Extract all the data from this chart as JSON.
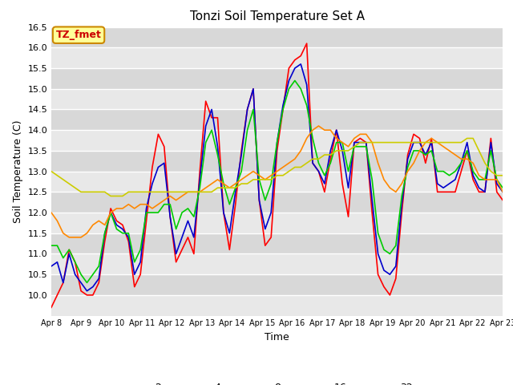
{
  "title": "Tonzi Soil Temperature Set A",
  "xlabel": "Time",
  "ylabel": "Soil Temperature (C)",
  "ylim": [
    9.5,
    16.5
  ],
  "yticks": [
    10.0,
    10.5,
    11.0,
    11.5,
    12.0,
    12.5,
    13.0,
    13.5,
    14.0,
    14.5,
    15.0,
    15.5,
    16.0,
    16.5
  ],
  "xtick_labels": [
    "Apr 8",
    "Apr 9",
    "Apr 10",
    "Apr 11",
    "Apr 12",
    "Apr 13",
    "Apr 14",
    "Apr 15",
    "Apr 16",
    "Apr 17",
    "Apr 18",
    "Apr 19",
    "Apr 20",
    "Apr 21",
    "Apr 22",
    "Apr 23"
  ],
  "fig_bg_color": "#ffffff",
  "plot_bg_color": "#e8e8e8",
  "grid_color": "#ffffff",
  "line_colors": {
    "2cm": "#ff0000",
    "4cm": "#0000cc",
    "8cm": "#00cc00",
    "16cm": "#ff8800",
    "32cm": "#cccc00"
  },
  "legend_label": "TZ_fmet",
  "legend_bg": "#ffff99",
  "legend_border": "#cc8800",
  "legend_text_color": "#cc0000",
  "series_2cm": [
    9.7,
    10.0,
    10.3,
    11.1,
    10.8,
    10.1,
    10.0,
    10.0,
    10.3,
    11.3,
    12.1,
    11.8,
    11.7,
    11.3,
    10.2,
    10.5,
    11.8,
    13.1,
    13.9,
    13.6,
    11.9,
    10.8,
    11.1,
    11.4,
    11.0,
    13.0,
    14.7,
    14.3,
    14.3,
    12.0,
    11.1,
    12.2,
    13.5,
    14.5,
    15.0,
    12.3,
    11.2,
    11.4,
    13.5,
    14.5,
    15.5,
    15.7,
    15.8,
    16.1,
    13.2,
    13.0,
    12.5,
    13.3,
    14.0,
    12.7,
    11.9,
    13.7,
    13.8,
    13.7,
    12.0,
    10.5,
    10.2,
    10.0,
    10.4,
    12.0,
    13.4,
    13.9,
    13.8,
    13.2,
    13.8,
    12.5,
    12.5,
    12.5,
    12.5,
    13.0,
    13.5,
    12.8,
    12.5,
    12.5,
    13.8,
    12.5,
    12.3
  ],
  "series_4cm": [
    10.7,
    10.8,
    10.3,
    11.0,
    10.5,
    10.3,
    10.1,
    10.2,
    10.4,
    11.5,
    12.0,
    11.7,
    11.6,
    11.4,
    10.5,
    10.8,
    12.1,
    12.7,
    13.1,
    13.2,
    11.9,
    11.0,
    11.4,
    11.8,
    11.4,
    12.8,
    14.1,
    14.5,
    13.6,
    12.0,
    11.5,
    12.5,
    13.4,
    14.5,
    15.0,
    12.3,
    11.6,
    12.0,
    13.7,
    14.6,
    15.2,
    15.5,
    15.6,
    15.1,
    13.2,
    13.0,
    12.7,
    13.5,
    14.0,
    13.5,
    12.6,
    13.7,
    13.7,
    13.7,
    12.3,
    11.0,
    10.6,
    10.5,
    10.7,
    12.2,
    13.3,
    13.7,
    13.7,
    13.4,
    13.7,
    12.7,
    12.6,
    12.7,
    12.8,
    13.2,
    13.7,
    12.9,
    12.6,
    12.5,
    13.7,
    12.7,
    12.5
  ],
  "series_8cm": [
    11.2,
    11.2,
    10.9,
    11.1,
    10.8,
    10.5,
    10.3,
    10.5,
    10.7,
    11.5,
    12.0,
    11.6,
    11.5,
    11.5,
    10.8,
    11.1,
    12.0,
    12.0,
    12.0,
    12.2,
    12.2,
    11.6,
    12.0,
    12.1,
    11.9,
    12.6,
    13.7,
    14.0,
    13.4,
    12.7,
    12.2,
    12.6,
    13.0,
    14.0,
    14.5,
    12.8,
    12.3,
    12.7,
    13.7,
    14.5,
    15.0,
    15.2,
    15.0,
    14.6,
    13.8,
    13.2,
    12.9,
    13.2,
    13.7,
    13.7,
    13.0,
    13.6,
    13.6,
    13.6,
    12.8,
    11.5,
    11.1,
    11.0,
    11.2,
    12.4,
    13.1,
    13.5,
    13.5,
    13.4,
    13.5,
    13.0,
    13.0,
    12.9,
    13.0,
    13.2,
    13.5,
    13.0,
    12.8,
    12.8,
    13.5,
    12.8,
    12.6
  ],
  "series_16cm": [
    12.0,
    11.8,
    11.5,
    11.4,
    11.4,
    11.4,
    11.5,
    11.7,
    11.8,
    11.7,
    12.0,
    12.1,
    12.1,
    12.2,
    12.1,
    12.2,
    12.2,
    12.1,
    12.2,
    12.3,
    12.4,
    12.3,
    12.4,
    12.5,
    12.5,
    12.5,
    12.6,
    12.7,
    12.8,
    12.7,
    12.6,
    12.7,
    12.8,
    12.9,
    13.0,
    12.9,
    12.8,
    12.9,
    13.0,
    13.1,
    13.2,
    13.3,
    13.5,
    13.8,
    14.0,
    14.1,
    14.0,
    14.0,
    13.8,
    13.7,
    13.6,
    13.8,
    13.9,
    13.9,
    13.7,
    13.2,
    12.8,
    12.6,
    12.5,
    12.7,
    13.0,
    13.2,
    13.5,
    13.7,
    13.8,
    13.7,
    13.6,
    13.5,
    13.4,
    13.3,
    13.3,
    13.2,
    12.9,
    12.8,
    12.8,
    12.8,
    12.5
  ],
  "series_32cm": [
    13.0,
    12.9,
    12.8,
    12.7,
    12.6,
    12.5,
    12.5,
    12.5,
    12.5,
    12.5,
    12.4,
    12.4,
    12.4,
    12.5,
    12.5,
    12.5,
    12.5,
    12.5,
    12.5,
    12.5,
    12.5,
    12.5,
    12.5,
    12.5,
    12.5,
    12.5,
    12.5,
    12.5,
    12.6,
    12.6,
    12.6,
    12.6,
    12.7,
    12.7,
    12.8,
    12.8,
    12.8,
    12.8,
    12.9,
    12.9,
    13.0,
    13.1,
    13.1,
    13.2,
    13.3,
    13.3,
    13.4,
    13.4,
    13.5,
    13.5,
    13.5,
    13.6,
    13.7,
    13.7,
    13.7,
    13.7,
    13.7,
    13.7,
    13.7,
    13.7,
    13.7,
    13.7,
    13.7,
    13.7,
    13.7,
    13.7,
    13.7,
    13.7,
    13.7,
    13.7,
    13.8,
    13.8,
    13.5,
    13.2,
    13.0,
    12.9,
    12.9
  ]
}
